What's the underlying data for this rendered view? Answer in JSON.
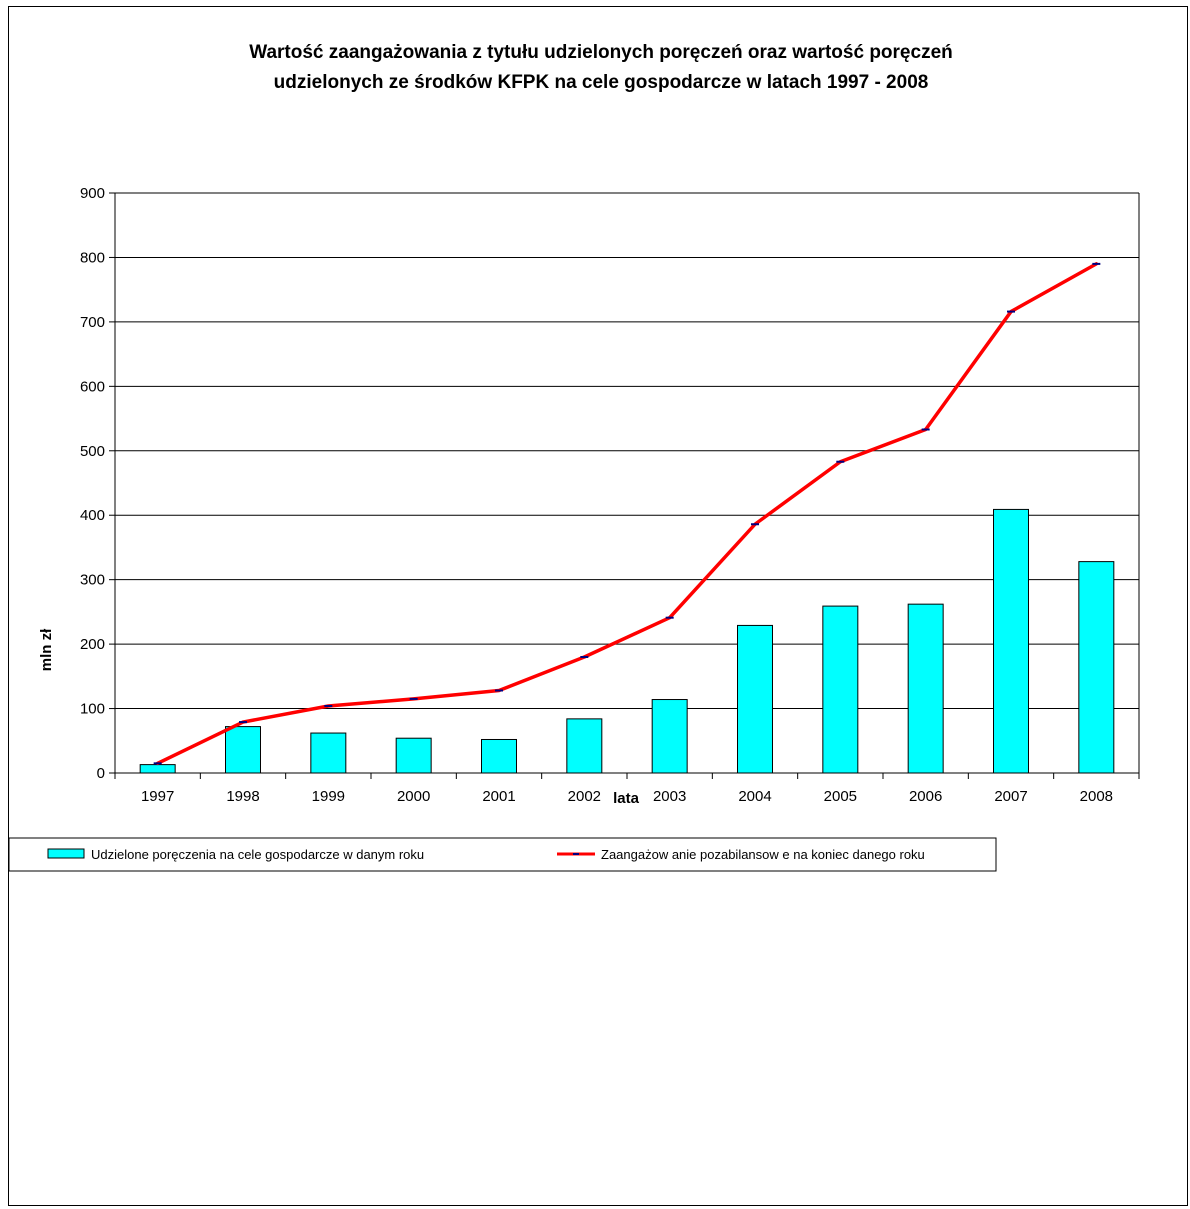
{
  "colors": {
    "bar_fill": "#00FFFF",
    "bar_stroke": "#000000",
    "line": "#FF0000",
    "marker": "#000080",
    "grid": "#000000",
    "background": "#FFFFFF"
  },
  "chart_data": {
    "type": "bar",
    "title_lines": [
      "Wartość zaangażowania z tytułu udzielonych poręczeń oraz wartość poręczeń",
      "udzielonych ze środków KFPK na cele gospodarcze w latach 1997 - 2008"
    ],
    "xlabel": "lata",
    "ylabel": "mln zł",
    "ylim": [
      0,
      900
    ],
    "yticks": [
      "0",
      "100",
      "200",
      "300",
      "400",
      "500",
      "600",
      "700",
      "800",
      "900"
    ],
    "categories": [
      "1997",
      "1998",
      "1999",
      "2000",
      "2001",
      "2002",
      "2003",
      "2004",
      "2005",
      "2006",
      "2007",
      "2008"
    ],
    "grid": true,
    "legend_position": "bottom",
    "series": [
      {
        "name": "Udzielone poręczenia na cele gospodarcze w  danym roku",
        "kind": "bar",
        "values": [
          13,
          72,
          62,
          54,
          52,
          84,
          114,
          229,
          259,
          262,
          409,
          328
        ]
      },
      {
        "name": "Zaangażow anie pozabilansow e na koniec danego roku",
        "kind": "line",
        "values": [
          15,
          79,
          104,
          115,
          128,
          180,
          241,
          386,
          483,
          533,
          716,
          790
        ]
      }
    ]
  }
}
